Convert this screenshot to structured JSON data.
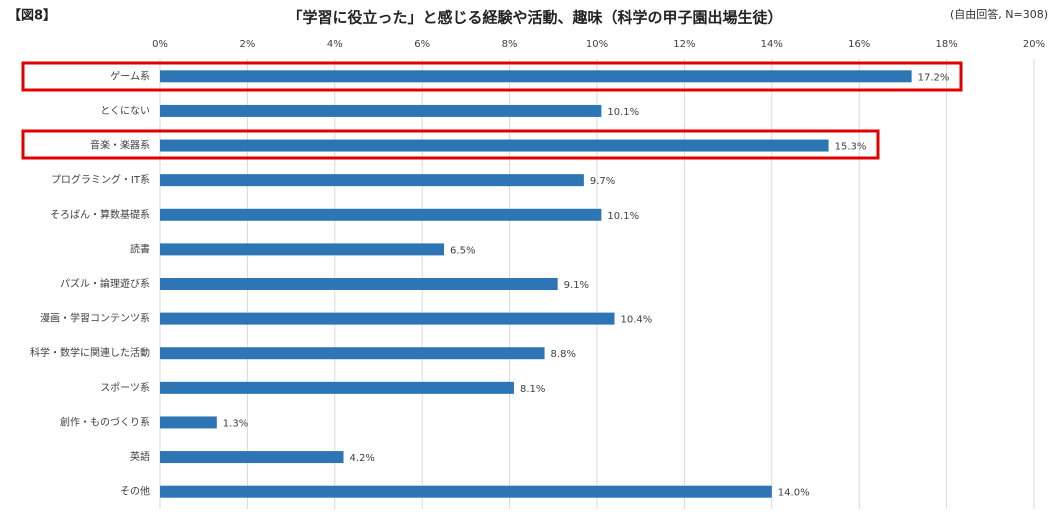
{
  "chart_data": {
    "type": "hbar",
    "figure_label": "【図8】",
    "title": "「学習に役立った」と感じる経験や活動、趣味（科学の甲子園出場生徒）",
    "note": "(自由回答, N=308)",
    "categories": [
      "ゲーム系",
      "とくにない",
      "音楽・楽器系",
      "プログラミング・IT系",
      "そろばん・算数基礎系",
      "読書",
      "パズル・論理遊び系",
      "漫画・学習コンテンツ系",
      "科学・数学に関連した活動",
      "スポーツ系",
      "創作・ものづくり系",
      "英語",
      "その他"
    ],
    "values": [
      17.2,
      10.1,
      15.3,
      9.7,
      10.1,
      6.5,
      9.1,
      10.4,
      8.8,
      8.1,
      1.3,
      4.2,
      14.0
    ],
    "value_labels": [
      "17.2%",
      "10.1%",
      "15.3%",
      "9.7%",
      "10.1%",
      "6.5%",
      "9.1%",
      "10.4%",
      "8.8%",
      "8.1%",
      "1.3%",
      "4.2%",
      "14.0%"
    ],
    "color": "#2e75b6",
    "xlim": [
      0,
      20
    ],
    "xticks": [
      {
        "value": 0,
        "label": "0%"
      },
      {
        "value": 2,
        "label": "2%"
      },
      {
        "value": 4,
        "label": "4%"
      },
      {
        "value": 6,
        "label": "6%"
      },
      {
        "value": 8,
        "label": "8%"
      },
      {
        "value": 10,
        "label": "10%"
      },
      {
        "value": 12,
        "label": "12%"
      },
      {
        "value": 14,
        "label": "14%"
      },
      {
        "value": 16,
        "label": "16%"
      },
      {
        "value": 18,
        "label": "18%"
      },
      {
        "value": 20,
        "label": "20%"
      }
    ],
    "grid": true
  }
}
